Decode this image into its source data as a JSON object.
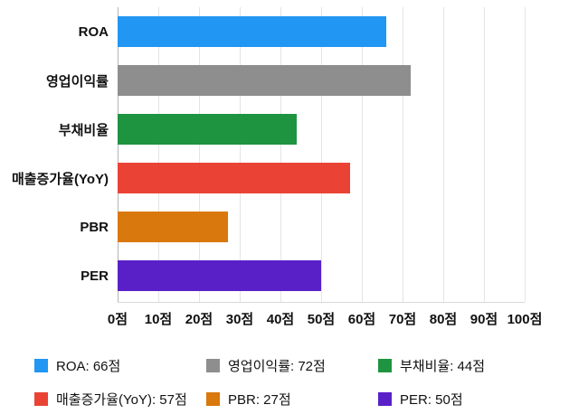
{
  "chart_data": {
    "type": "bar",
    "orientation": "horizontal",
    "title": "",
    "xlabel": "",
    "ylabel": "",
    "unit": "점",
    "xlim": [
      0,
      100
    ],
    "grid": true,
    "categories": [
      "ROA",
      "영업이익률",
      "부채비율",
      "매출증가율(YoY)",
      "PBR",
      "PER"
    ],
    "values": [
      66,
      72,
      44,
      57,
      27,
      50
    ],
    "colors": [
      "#2196F3",
      "#8E8E8E",
      "#1E9440",
      "#EA4335",
      "#D9780C",
      "#5A20C8"
    ],
    "x_ticks": [
      "0점",
      "10점",
      "20점",
      "30점",
      "40점",
      "50점",
      "60점",
      "70점",
      "80점",
      "90점",
      "100점"
    ],
    "legend_position": "bottom",
    "legend": [
      {
        "label": "ROA: 66점",
        "color": "#2196F3"
      },
      {
        "label": "영업이익률: 72점",
        "color": "#8E8E8E"
      },
      {
        "label": "부채비율: 44점",
        "color": "#1E9440"
      },
      {
        "label": "매출증가율(YoY): 57점",
        "color": "#EA4335"
      },
      {
        "label": "PBR: 27점",
        "color": "#D9780C"
      },
      {
        "label": "PER: 50점",
        "color": "#5A20C8"
      }
    ]
  }
}
